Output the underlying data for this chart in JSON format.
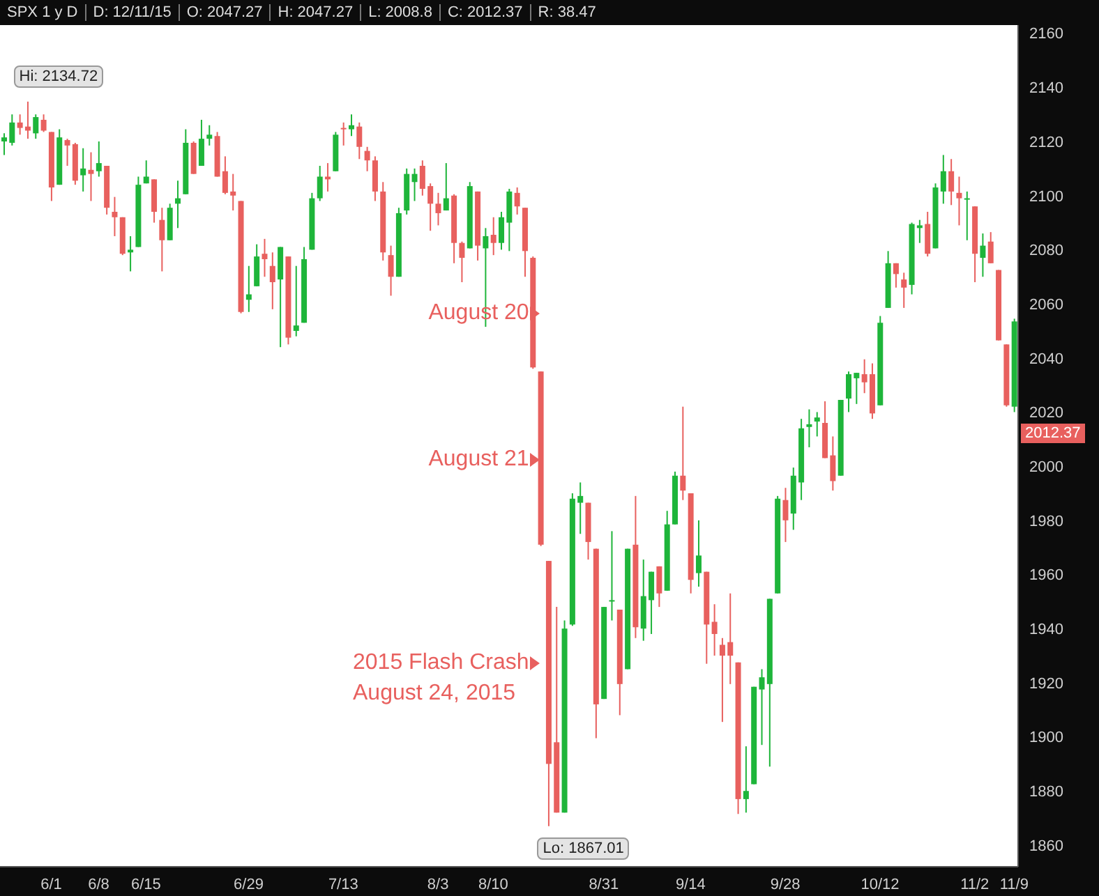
{
  "chart_data": {
    "type": "candlestick",
    "categories": [
      null,
      null,
      null,
      null,
      null,
      null,
      "6/1",
      null,
      null,
      null,
      null,
      null,
      "6/8",
      null,
      null,
      null,
      null,
      null,
      "6/15",
      null,
      null,
      null,
      null,
      null,
      null,
      null,
      null,
      null,
      null,
      null,
      null,
      "6/29",
      null,
      null,
      null,
      null,
      null,
      null,
      null,
      null,
      null,
      null,
      null,
      "7/13",
      null,
      null,
      null,
      null,
      null,
      null,
      null,
      null,
      null,
      null,
      null,
      "8/3",
      null,
      null,
      null,
      null,
      null,
      null,
      "8/10",
      null,
      null,
      null,
      null,
      null,
      null,
      null,
      null,
      null,
      null,
      null,
      null,
      null,
      "8/31",
      null,
      null,
      null,
      null,
      null,
      null,
      null,
      null,
      null,
      null,
      "9/14",
      null,
      null,
      null,
      null,
      null,
      null,
      null,
      null,
      null,
      null,
      null,
      "9/28",
      null,
      null,
      null,
      null,
      null,
      null,
      null,
      null,
      null,
      null,
      null,
      "10/12",
      null,
      null,
      null,
      null,
      null,
      null,
      null,
      null,
      null,
      null,
      null,
      "11/2",
      null,
      null,
      null,
      null,
      "11/9"
    ],
    "ohlc": [
      [
        2120,
        2123,
        2115,
        2121.5
      ],
      [
        2119.5,
        2130,
        2118.5,
        2127
      ],
      [
        2127,
        2130,
        2122.5,
        2125
      ],
      [
        2125.5,
        2134.72,
        2121,
        2124
      ],
      [
        2123,
        2130,
        2121,
        2129
      ],
      [
        2128,
        2130,
        2123.5,
        2124
      ],
      [
        2123.5,
        2123.5,
        2098,
        2103
      ],
      [
        2104,
        2124.5,
        2104,
        2121.5
      ],
      [
        2120.5,
        2121,
        2111,
        2118.5
      ],
      [
        2119,
        2119.5,
        2104,
        2105.5
      ],
      [
        2107.5,
        2117.5,
        2101.5,
        2110
      ],
      [
        2109.5,
        2116,
        2098,
        2108
      ],
      [
        2109,
        2120,
        2107,
        2112
      ],
      [
        2111,
        2111,
        2093,
        2095.5
      ],
      [
        2094,
        2099.5,
        2085,
        2092
      ],
      [
        2092,
        2092,
        2078,
        2078.5
      ],
      [
        2079,
        2085,
        2072,
        2080
      ],
      [
        2081,
        2107,
        2081,
        2104
      ],
      [
        2104.5,
        2113,
        2104.5,
        2107
      ],
      [
        2106,
        2106,
        2090,
        2094
      ],
      [
        2091,
        2095.5,
        2072,
        2083.5
      ],
      [
        2083.5,
        2097,
        2083.5,
        2095.5
      ],
      [
        2097,
        2105.5,
        2088,
        2099
      ],
      [
        2100.5,
        2124.5,
        2100.5,
        2119.5
      ],
      [
        2119.5,
        2120,
        2108,
        2108
      ],
      [
        2111,
        2128,
        2111,
        2121
      ],
      [
        2121,
        2126,
        2118.5,
        2122.5
      ],
      [
        2122,
        2123.5,
        2107,
        2107
      ],
      [
        2109,
        2114.5,
        2100.5,
        2101
      ],
      [
        2101.5,
        2108,
        2094.5,
        2100
      ],
      [
        2098,
        2098,
        2056.5,
        2057
      ],
      [
        2061.5,
        2074,
        2057,
        2063.5
      ],
      [
        2066.5,
        2082,
        2066.5,
        2077.5
      ],
      [
        2078.5,
        2084,
        2070,
        2076.5
      ],
      [
        2074,
        2079,
        2058,
        2068
      ],
      [
        2069,
        2081,
        2044,
        2081
      ],
      [
        2077.5,
        2077.5,
        2045,
        2047.5
      ],
      [
        2050,
        2074,
        2048,
        2052
      ],
      [
        2053,
        2081,
        2053,
        2076.5
      ],
      [
        2080,
        2101,
        2080,
        2099
      ],
      [
        2099,
        2111,
        2098,
        2107
      ],
      [
        2107,
        2112,
        2101.5,
        2106
      ],
      [
        2109,
        2123.5,
        2109,
        2122.5
      ],
      [
        2125,
        2127,
        2118.5,
        2124.5
      ],
      [
        2124.5,
        2130,
        2122,
        2126
      ],
      [
        2125.5,
        2127,
        2113.5,
        2118
      ],
      [
        2116.5,
        2118,
        2109,
        2113
      ],
      [
        2113,
        2114.5,
        2098,
        2101.5
      ],
      [
        2101.5,
        2105,
        2076,
        2079
      ],
      [
        2078,
        2081.5,
        2063,
        2070
      ],
      [
        2070,
        2095.5,
        2070,
        2093.5
      ],
      [
        2094.5,
        2110,
        2093,
        2108
      ],
      [
        2105,
        2110,
        2098,
        2108
      ],
      [
        2111,
        2113,
        2100,
        2102.5
      ],
      [
        2103.5,
        2104.5,
        2087,
        2097
      ],
      [
        2097,
        2101,
        2089,
        2093.5
      ],
      [
        2094.5,
        2112,
        2094.5,
        2099
      ],
      [
        2100,
        2100.5,
        2075,
        2082.5
      ],
      [
        2082.5,
        2083,
        2068,
        2077
      ],
      [
        2080.5,
        2105,
        2080.5,
        2103.5
      ],
      [
        2101.5,
        2101.5,
        2076,
        2081.5
      ],
      [
        2080.5,
        2088,
        2051.5,
        2085
      ],
      [
        2085.5,
        2092,
        2078,
        2082.5
      ],
      [
        2082.5,
        2094,
        2080,
        2092
      ],
      [
        2090,
        2102.5,
        2079.5,
        2101.5
      ],
      [
        2101,
        2103,
        2093,
        2096
      ],
      [
        2095.5,
        2095.5,
        2070,
        2079.5
      ],
      [
        2077,
        2077.5,
        2036,
        2036.5
      ],
      [
        2035,
        2035,
        1970.5,
        1971
      ],
      [
        1965,
        1965,
        1867.01,
        1890
      ],
      [
        1898,
        1948,
        1872,
        1872
      ],
      [
        1872,
        1943,
        1872,
        1940
      ],
      [
        1941.5,
        1990,
        1941,
        1988
      ],
      [
        1986.5,
        1994,
        1975,
        1989
      ],
      [
        1986.5,
        1986.5,
        1965.5,
        1972
      ],
      [
        1969.5,
        1969.5,
        1899.5,
        1912
      ],
      [
        1914,
        1948,
        1914,
        1948
      ],
      [
        1950,
        1976,
        1943,
        1950.5
      ],
      [
        1947,
        1947,
        1908,
        1919.5
      ],
      [
        1925,
        1969.5,
        1925,
        1969.5
      ],
      [
        1971,
        1989,
        1936.5,
        1940.5
      ],
      [
        1940,
        1965.5,
        1935.5,
        1952
      ],
      [
        1950.5,
        1961,
        1938,
        1961
      ],
      [
        1963,
        1963,
        1948,
        1953
      ],
      [
        1954,
        1983.5,
        1954,
        1978.5
      ],
      [
        1978.5,
        1998,
        1978.5,
        1996.5
      ],
      [
        1996.5,
        2022,
        1987.5,
        1991
      ],
      [
        1990,
        1990,
        1953,
        1958
      ],
      [
        1960.5,
        1980,
        1955.5,
        1967
      ],
      [
        1961,
        1961,
        1927,
        1941.5
      ],
      [
        1942.5,
        1949,
        1930,
        1938
      ],
      [
        1934,
        1936.5,
        1905.5,
        1930
      ],
      [
        1935,
        1953,
        1919.5,
        1930
      ],
      [
        1927.5,
        1927.5,
        1871.5,
        1877
      ],
      [
        1877,
        1896.5,
        1872,
        1880
      ],
      [
        1882.5,
        1918.5,
        1882.5,
        1918.5
      ],
      [
        1917.5,
        1925,
        1897,
        1922
      ],
      [
        1919.5,
        1951,
        1889,
        1951
      ],
      [
        1953,
        1989,
        1953,
        1988
      ],
      [
        1987.5,
        1992,
        1972,
        1980
      ],
      [
        1982.5,
        1999.5,
        1976.5,
        1996.5
      ],
      [
        1994,
        2017.5,
        1987.5,
        2014
      ],
      [
        2014.5,
        2021,
        2007,
        2015.5
      ],
      [
        2016.5,
        2020,
        2011,
        2018
      ],
      [
        2016,
        2024,
        2003,
        2003
      ],
      [
        2004,
        2011,
        1991,
        1994.5
      ],
      [
        1996.5,
        2024.5,
        1996.5,
        2024.5
      ],
      [
        2025,
        2035,
        2020,
        2034
      ],
      [
        2032.5,
        2034.5,
        2023,
        2034.5
      ],
      [
        2034,
        2039.5,
        2027,
        2031
      ],
      [
        2034,
        2038,
        2017.5,
        2019.5
      ],
      [
        2022.5,
        2055.5,
        2022.5,
        2053
      ],
      [
        2058.5,
        2079.5,
        2058.5,
        2075
      ],
      [
        2075,
        2075,
        2066,
        2071
      ],
      [
        2069,
        2071.5,
        2058.5,
        2066
      ],
      [
        2067,
        2090,
        2063.5,
        2089.5
      ],
      [
        2088,
        2091,
        2082.5,
        2089
      ],
      [
        2089.5,
        2094,
        2077.5,
        2078.5
      ],
      [
        2080.5,
        2104.5,
        2080.5,
        2103
      ],
      [
        2101.5,
        2115,
        2097,
        2109
      ],
      [
        2109,
        2113.5,
        2096.5,
        2101.5
      ],
      [
        2101,
        2107,
        2089,
        2099
      ],
      [
        2098.5,
        2101.5,
        2083.5,
        2099
      ],
      [
        2096,
        2096,
        2068,
        2078.5
      ],
      [
        2077,
        2086,
        2070,
        2081.5
      ],
      [
        2083,
        2086.5,
        2075,
        2075
      ],
      [
        2072.5,
        2072.5,
        2046.5,
        2046.5
      ],
      [
        2045,
        2045,
        2022,
        2022.5
      ],
      [
        2022,
        2054.5,
        2020,
        2053.5
      ]
    ],
    "colors": [
      "#1eb53a",
      "#1eb53a",
      "#e8605e",
      "#e8605e",
      "#1eb53a",
      "#e8605e",
      "#e8605e",
      "#1eb53a",
      "#e8605e",
      "#e8605e",
      "#1eb53a",
      "#e8605e",
      "#1eb53a",
      "#e8605e",
      "#e8605e",
      "#e8605e",
      "#1eb53a",
      "#1eb53a",
      "#1eb53a",
      "#e8605e",
      "#e8605e",
      "#1eb53a",
      "#1eb53a",
      "#1eb53a",
      "#e8605e",
      "#1eb53a",
      "#1eb53a",
      "#e8605e",
      "#e8605e",
      "#e8605e",
      "#e8605e",
      "#1eb53a",
      "#1eb53a",
      "#e8605e",
      "#e8605e",
      "#1eb53a",
      "#e8605e",
      "#1eb53a",
      "#1eb53a",
      "#1eb53a",
      "#1eb53a",
      "#e8605e",
      "#1eb53a",
      "#e8605e",
      "#1eb53a",
      "#e8605e",
      "#e8605e",
      "#e8605e",
      "#e8605e",
      "#e8605e",
      "#1eb53a",
      "#1eb53a",
      "#1eb53a",
      "#e8605e",
      "#e8605e",
      "#e8605e",
      "#1eb53a",
      "#e8605e",
      "#e8605e",
      "#1eb53a",
      "#e8605e",
      "#1eb53a",
      "#e8605e",
      "#1eb53a",
      "#1eb53a",
      "#e8605e",
      "#e8605e",
      "#e8605e",
      "#e8605e",
      "#e8605e",
      "#e8605e",
      "#1eb53a",
      "#1eb53a",
      "#1eb53a",
      "#e8605e",
      "#e8605e",
      "#1eb53a",
      "#1eb53a",
      "#e8605e",
      "#1eb53a",
      "#e8605e",
      "#1eb53a",
      "#1eb53a",
      "#e8605e",
      "#1eb53a",
      "#1eb53a",
      "#e8605e",
      "#e8605e",
      "#1eb53a",
      "#e8605e",
      "#e8605e",
      "#e8605e",
      "#e8605e",
      "#e8605e",
      "#1eb53a",
      "#1eb53a",
      "#1eb53a",
      "#1eb53a",
      "#1eb53a",
      "#e8605e",
      "#1eb53a",
      "#1eb53a",
      "#1eb53a",
      "#1eb53a",
      "#e8605e",
      "#e8605e",
      "#1eb53a",
      "#1eb53a",
      "#1eb53a",
      "#e8605e",
      "#e8605e",
      "#1eb53a",
      "#1eb53a",
      "#e8605e",
      "#e8605e",
      "#1eb53a",
      "#1eb53a",
      "#e8605e",
      "#1eb53a",
      "#1eb53a",
      "#e8605e",
      "#e8605e",
      "#1eb53a",
      "#e8605e",
      "#1eb53a",
      "#e8605e",
      "#e8605e",
      "#e8605e",
      "#1eb53a"
    ],
    "ylim": [
      1852,
      2163
    ],
    "yticks": [
      1860,
      1880,
      1900,
      1920,
      1940,
      1960,
      1980,
      2000,
      2020,
      2040,
      2060,
      2080,
      2100,
      2120,
      2140,
      2160
    ],
    "annotations": [
      "SPX 1 y D",
      "D: 12/11/15",
      "O: 2047.27",
      "H: 2047.27",
      "L: 2008.8",
      "C: 2012.37",
      "R: 38.47",
      "Hi: 2134.72",
      "Lo: 1867.01",
      "2012.37",
      "August 20",
      "August 21",
      "2015 Flash Crash\nAugust 24, 2015"
    ]
  }
}
